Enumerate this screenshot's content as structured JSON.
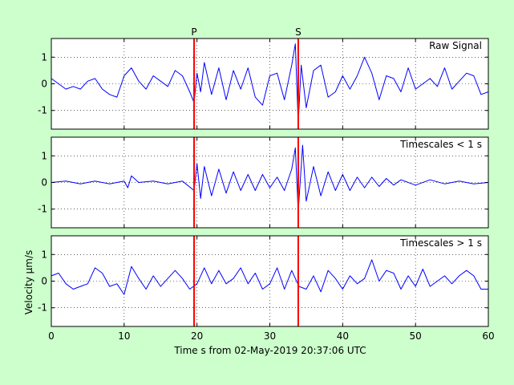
{
  "figure": {
    "background_color": "#ccffcc",
    "axes_background_color": "#ffffff",
    "trace_color": "#0000ff",
    "marker_color": "#ff0000",
    "xlabel": "Time s from 02-May-2019 20:37:06 UTC",
    "ylabel": "Velocity μm/s"
  },
  "chart_data": [
    {
      "type": "line",
      "title": "Raw Signal",
      "xlim": [
        0,
        60
      ],
      "ylim": [
        -1.7,
        1.7
      ],
      "xticks": [
        0,
        10,
        20,
        30,
        40,
        50,
        60
      ],
      "yticks": [
        -1,
        0,
        1
      ],
      "grid": true,
      "markers": [
        {
          "label": "P",
          "x": 19.6
        },
        {
          "label": "S",
          "x": 33.9
        }
      ],
      "series": [
        {
          "x": [
            0,
            1,
            2,
            3,
            4,
            5,
            6,
            7,
            8,
            9,
            10,
            11,
            12,
            13,
            14,
            15,
            16,
            17,
            18,
            19,
            19.6,
            20,
            20.5,
            21,
            22,
            23,
            24,
            25,
            26,
            27,
            28,
            29,
            30,
            31,
            32,
            33,
            33.5,
            33.9,
            34.3,
            35,
            36,
            37,
            38,
            39,
            40,
            41,
            42,
            43,
            44,
            45,
            46,
            47,
            48,
            49,
            50,
            51,
            52,
            53,
            54,
            55,
            56,
            57,
            58,
            59,
            60
          ],
          "y": [
            0.2,
            0.0,
            -0.2,
            -0.1,
            -0.2,
            0.1,
            0.2,
            -0.2,
            -0.4,
            -0.5,
            0.3,
            0.6,
            0.1,
            -0.2,
            0.3,
            0.1,
            -0.1,
            0.5,
            0.3,
            -0.3,
            -0.7,
            0.4,
            -0.3,
            0.8,
            -0.4,
            0.6,
            -0.6,
            0.5,
            -0.2,
            0.6,
            -0.5,
            -0.8,
            0.3,
            0.4,
            -0.6,
            0.7,
            1.5,
            -1.5,
            0.7,
            -0.9,
            0.5,
            0.7,
            -0.5,
            -0.3,
            0.3,
            -0.2,
            0.3,
            1.0,
            0.4,
            -0.6,
            0.3,
            0.2,
            -0.3,
            0.6,
            -0.2,
            0.0,
            0.2,
            -0.1,
            0.6,
            -0.2,
            0.1,
            0.4,
            0.3,
            -0.4,
            -0.3
          ]
        }
      ]
    },
    {
      "type": "line",
      "title": "Timescales < 1 s",
      "xlim": [
        0,
        60
      ],
      "ylim": [
        -1.7,
        1.7
      ],
      "xticks": [
        0,
        10,
        20,
        30,
        40,
        50,
        60
      ],
      "yticks": [
        -1,
        0,
        1
      ],
      "grid": true,
      "markers": [
        {
          "label": "P",
          "x": 19.6
        },
        {
          "label": "S",
          "x": 33.9
        }
      ],
      "series": [
        {
          "x": [
            0,
            2,
            4,
            6,
            8,
            10,
            10.5,
            11,
            12,
            14,
            16,
            18,
            19.6,
            20,
            20.5,
            21,
            22,
            23,
            24,
            25,
            26,
            27,
            28,
            29,
            30,
            31,
            32,
            33,
            33.5,
            33.9,
            34.5,
            35,
            36,
            37,
            38,
            39,
            40,
            41,
            42,
            43,
            44,
            45,
            46,
            47,
            48,
            50,
            52,
            54,
            56,
            58,
            60
          ],
          "y": [
            0.0,
            0.05,
            -0.05,
            0.05,
            -0.05,
            0.05,
            -0.2,
            0.25,
            0.0,
            0.05,
            -0.05,
            0.05,
            -0.3,
            0.7,
            -0.6,
            0.6,
            -0.5,
            0.5,
            -0.4,
            0.4,
            -0.3,
            0.3,
            -0.3,
            0.3,
            -0.2,
            0.2,
            -0.3,
            0.5,
            1.3,
            -1.1,
            1.4,
            -0.7,
            0.6,
            -0.5,
            0.4,
            -0.3,
            0.3,
            -0.3,
            0.2,
            -0.2,
            0.2,
            -0.15,
            0.15,
            -0.1,
            0.1,
            -0.1,
            0.1,
            -0.05,
            0.05,
            -0.05,
            0.0
          ]
        }
      ]
    },
    {
      "type": "line",
      "title": "Timescales > 1 s",
      "xlim": [
        0,
        60
      ],
      "ylim": [
        -1.7,
        1.7
      ],
      "xticks": [
        0,
        10,
        20,
        30,
        40,
        50,
        60
      ],
      "yticks": [
        -1,
        0,
        1
      ],
      "grid": true,
      "markers": [
        {
          "label": "P",
          "x": 19.6
        },
        {
          "label": "S",
          "x": 33.9
        }
      ],
      "series": [
        {
          "x": [
            0,
            1,
            2,
            3,
            4,
            5,
            6,
            7,
            8,
            9,
            10,
            11,
            12,
            13,
            14,
            15,
            16,
            17,
            18,
            19,
            20,
            21,
            22,
            23,
            24,
            25,
            26,
            27,
            28,
            29,
            30,
            31,
            32,
            33,
            34,
            35,
            36,
            37,
            38,
            39,
            40,
            41,
            42,
            43,
            44,
            45,
            46,
            47,
            48,
            49,
            50,
            51,
            52,
            53,
            54,
            55,
            56,
            57,
            58,
            59,
            60
          ],
          "y": [
            0.2,
            0.3,
            -0.1,
            -0.3,
            -0.2,
            -0.1,
            0.5,
            0.3,
            -0.2,
            -0.1,
            -0.5,
            0.55,
            0.1,
            -0.3,
            0.2,
            -0.2,
            0.1,
            0.4,
            0.1,
            -0.3,
            -0.1,
            0.5,
            -0.1,
            0.4,
            -0.1,
            0.1,
            0.5,
            -0.1,
            0.3,
            -0.3,
            -0.1,
            0.5,
            -0.3,
            0.4,
            -0.2,
            -0.3,
            0.2,
            -0.4,
            0.4,
            0.1,
            -0.3,
            0.2,
            -0.1,
            0.1,
            0.8,
            0.0,
            0.4,
            0.3,
            -0.3,
            0.2,
            -0.2,
            0.45,
            -0.2,
            0.0,
            0.2,
            -0.1,
            0.2,
            0.4,
            0.2,
            -0.3,
            -0.3
          ]
        }
      ]
    }
  ]
}
